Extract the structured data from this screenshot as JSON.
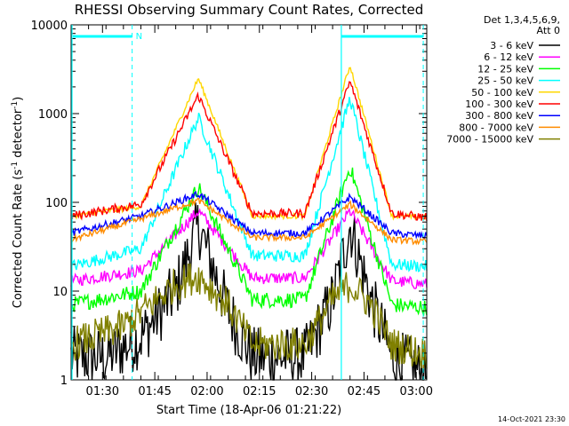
{
  "chart_data": {
    "type": "line",
    "title": "RHESSI Observing Summary Count Rates, Corrected",
    "xlabel": "Start Time (18-Apr-06 01:21:22)",
    "ylabel_main": "Corrected Count Rate (s",
    "ylabel_sup1": "-1",
    "ylabel_mid": " detector",
    "ylabel_sup2": "-1",
    "ylabel_end": ")",
    "y_scale": "log",
    "ylim": [
      1,
      10000
    ],
    "xlim_minutes_after_0121": [
      0,
      102
    ],
    "y_ticks": [
      {
        "value": 1,
        "label": "1"
      },
      {
        "value": 10,
        "label": "10"
      },
      {
        "value": 100,
        "label": "100"
      },
      {
        "value": 1000,
        "label": "1000"
      },
      {
        "value": 10000,
        "label": "10000"
      }
    ],
    "x_ticks": [
      {
        "t": 9,
        "label": "01:30"
      },
      {
        "t": 24,
        "label": "01:45"
      },
      {
        "t": 39,
        "label": "02:00"
      },
      {
        "t": 54,
        "label": "02:15"
      },
      {
        "t": 69,
        "label": "02:30"
      },
      {
        "t": 84,
        "label": "02:45"
      },
      {
        "t": 99,
        "label": "03:00"
      }
    ],
    "legend_header": [
      "Det 1,3,4,5,6,9,",
      "Att 0"
    ],
    "legend_position": "right",
    "flags": {
      "label": "N",
      "night_start": 0,
      "night_end": 17.5,
      "day_start": 77.5,
      "day_end": 101
    },
    "date_stamp": "14-Oct-2021 23:30",
    "flares": [
      {
        "peak": 36.5,
        "rise": 4.5,
        "decay": 7.5
      },
      {
        "peak": 80,
        "rise": 4.5,
        "decay": 4
      }
    ],
    "series": [
      {
        "name": "3 - 6 keV",
        "color": "#000000",
        "base": 1.8,
        "peak1": 55,
        "peak2": 55,
        "noise": 0.35,
        "points": [
          [
            0,
            1.8
          ],
          [
            10,
            1.8
          ],
          [
            20,
            3
          ],
          [
            30,
            10
          ],
          [
            36.5,
            55
          ],
          [
            45,
            6
          ],
          [
            52,
            1.8
          ],
          [
            67,
            1.8
          ],
          [
            75,
            8
          ],
          [
            80,
            55
          ],
          [
            86,
            8
          ],
          [
            92,
            1.8
          ],
          [
            101,
            1.2
          ]
        ]
      },
      {
        "name": "6 - 12 keV",
        "color": "#ff00ff",
        "base": 13,
        "peak1": 80,
        "peak2": 80,
        "noise": 0.07,
        "points": [
          [
            0,
            13
          ],
          [
            20,
            17
          ],
          [
            36.5,
            80
          ],
          [
            52,
            14
          ],
          [
            67,
            14
          ],
          [
            80,
            80
          ],
          [
            92,
            13
          ],
          [
            101,
            12
          ]
        ]
      },
      {
        "name": "12 - 25 keV",
        "color": "#00ff00",
        "base": 7,
        "peak1": 150,
        "peak2": 250,
        "noise": 0.09,
        "points": [
          [
            0,
            7
          ],
          [
            20,
            10
          ],
          [
            36.5,
            150
          ],
          [
            52,
            8
          ],
          [
            67,
            8
          ],
          [
            80,
            250
          ],
          [
            92,
            7
          ],
          [
            101,
            6.5
          ]
        ]
      },
      {
        "name": "25 - 50 keV",
        "color": "#00ffff",
        "base": 20,
        "peak1": 900,
        "peak2": 1500,
        "noise": 0.07,
        "points": [
          [
            0,
            19
          ],
          [
            20,
            30
          ],
          [
            36.5,
            900
          ],
          [
            52,
            25
          ],
          [
            67,
            25
          ],
          [
            80,
            1500
          ],
          [
            92,
            20
          ],
          [
            101,
            19
          ]
        ]
      },
      {
        "name": "50 - 100 keV",
        "color": "#ffd700",
        "base": 70,
        "peak1": 2500,
        "peak2": 3500,
        "noise": 0.03,
        "points": [
          [
            0,
            70
          ],
          [
            20,
            90
          ],
          [
            36.5,
            2500
          ],
          [
            52,
            70
          ],
          [
            67,
            70
          ],
          [
            80,
            3500
          ],
          [
            92,
            70
          ],
          [
            101,
            68
          ]
        ]
      },
      {
        "name": "100 - 300 keV",
        "color": "#ff0000",
        "base": 70,
        "peak1": 1600,
        "peak2": 2300,
        "noise": 0.05,
        "points": [
          [
            0,
            70
          ],
          [
            20,
            95
          ],
          [
            36.5,
            1600
          ],
          [
            52,
            75
          ],
          [
            67,
            75
          ],
          [
            80,
            2300
          ],
          [
            92,
            75
          ],
          [
            101,
            68
          ]
        ]
      },
      {
        "name": "300 - 800 keV",
        "color": "#0000ff",
        "base": 45,
        "peak1": 125,
        "peak2": 115,
        "noise": 0.04,
        "points": [
          [
            0,
            45
          ],
          [
            20,
            70
          ],
          [
            36.5,
            125
          ],
          [
            52,
            45
          ],
          [
            67,
            45
          ],
          [
            80,
            115
          ],
          [
            92,
            45
          ],
          [
            101,
            42
          ]
        ]
      },
      {
        "name": "800 - 7000 keV",
        "color": "#ff8c00",
        "base": 38,
        "peak1": 105,
        "peak2": 95,
        "noise": 0.035,
        "points": [
          [
            0,
            38
          ],
          [
            20,
            65
          ],
          [
            36.5,
            105
          ],
          [
            52,
            40
          ],
          [
            67,
            40
          ],
          [
            80,
            95
          ],
          [
            92,
            38
          ],
          [
            101,
            36
          ]
        ]
      },
      {
        "name": "7000 - 15000 keV",
        "color": "#808000",
        "base": 2.5,
        "peak1": 15,
        "peak2": 12,
        "noise": 0.2,
        "points": [
          [
            0,
            2.5
          ],
          [
            15,
            4
          ],
          [
            30,
            12
          ],
          [
            36.5,
            15
          ],
          [
            45,
            7
          ],
          [
            52,
            2.5
          ],
          [
            67,
            2.5
          ],
          [
            75,
            8
          ],
          [
            80,
            12
          ],
          [
            86,
            7
          ],
          [
            92,
            2.5
          ],
          [
            101,
            2
          ]
        ]
      }
    ]
  }
}
